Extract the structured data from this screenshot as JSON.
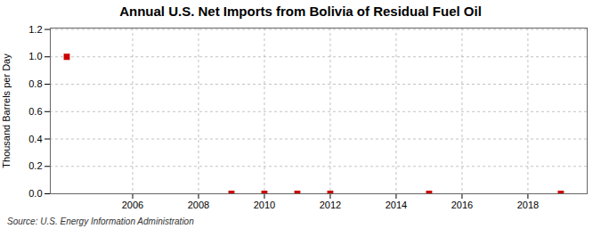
{
  "chart_data": {
    "type": "scatter",
    "title": "Annual U.S. Net Imports from Bolivia of Residual Fuel Oil",
    "ylabel": "Thousand Barrels per Day",
    "source": "Source: U.S. Energy Information Administration",
    "x": [
      2004,
      2009,
      2010,
      2011,
      2012,
      2015,
      2019
    ],
    "values": [
      1.0,
      0.0,
      0.0,
      0.0,
      0.0,
      0.0,
      0.0
    ],
    "color": "#cc0000",
    "marker": "square",
    "xlim": [
      2003.5,
      2019.8
    ],
    "xticks": [
      2006,
      2008,
      2010,
      2012,
      2014,
      2016,
      2018
    ],
    "ylim": [
      0.0,
      1.21
    ],
    "yticks": [
      {
        "value": 0.0,
        "label": "0.0"
      },
      0.2,
      0.4,
      0.6,
      0.8,
      {
        "value": 1.0,
        "label": "1.0"
      },
      1.2
    ],
    "grid": true
  }
}
